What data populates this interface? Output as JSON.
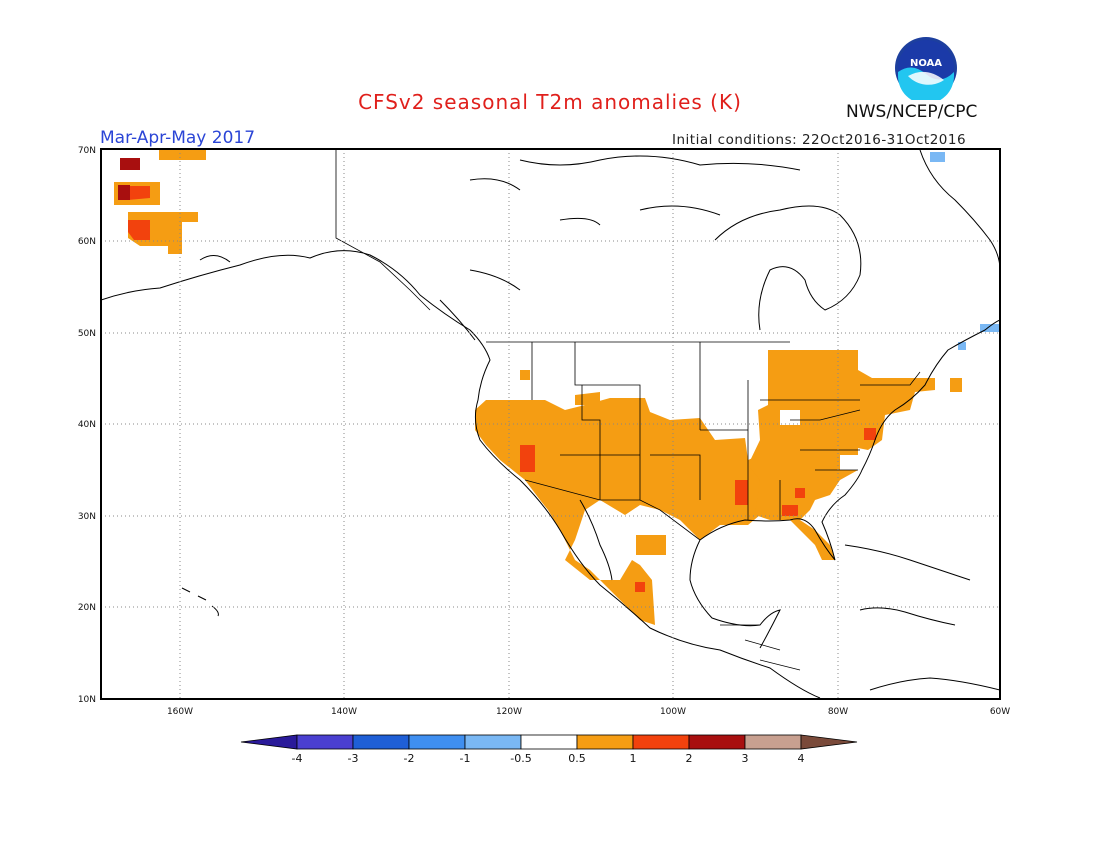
{
  "title": "CFSv2 seasonal T2m anomalies (K)",
  "season": "Mar-Apr-May 2017",
  "initial_conditions": "Initial conditions: 22Oct2016-31Oct2016",
  "agency": "NWS/NCEP/CPC",
  "logo_text": "NOAA",
  "map": {
    "lon_range": [
      -172,
      -60
    ],
    "lat_range": [
      10,
      70
    ],
    "lat_labels": [
      "10N",
      "20N",
      "30N",
      "40N",
      "50N",
      "60N",
      "70N"
    ],
    "lon_labels": [
      "160W",
      "140W",
      "120W",
      "100W",
      "80W",
      "60W"
    ]
  },
  "colorbar": {
    "colors": [
      "#2a1a9a",
      "#4a3fd0",
      "#1f5fd6",
      "#3f8ff0",
      "#7ab8f4",
      "#ffffff",
      "#f59d13",
      "#f2420d",
      "#a80f0f",
      "#c8a090",
      "#7a4a3a"
    ],
    "labels": [
      "-4",
      "-3",
      "-2",
      "-1",
      "-0.5",
      "0.5",
      "1",
      "2",
      "3",
      "4"
    ],
    "anomaly_colors": {
      "warm1": "#f59d13",
      "warm2": "#f2420d",
      "warm3": "#a80f0f",
      "warm4": "#c8a090",
      "cool1": "#7ab8f4"
    }
  }
}
